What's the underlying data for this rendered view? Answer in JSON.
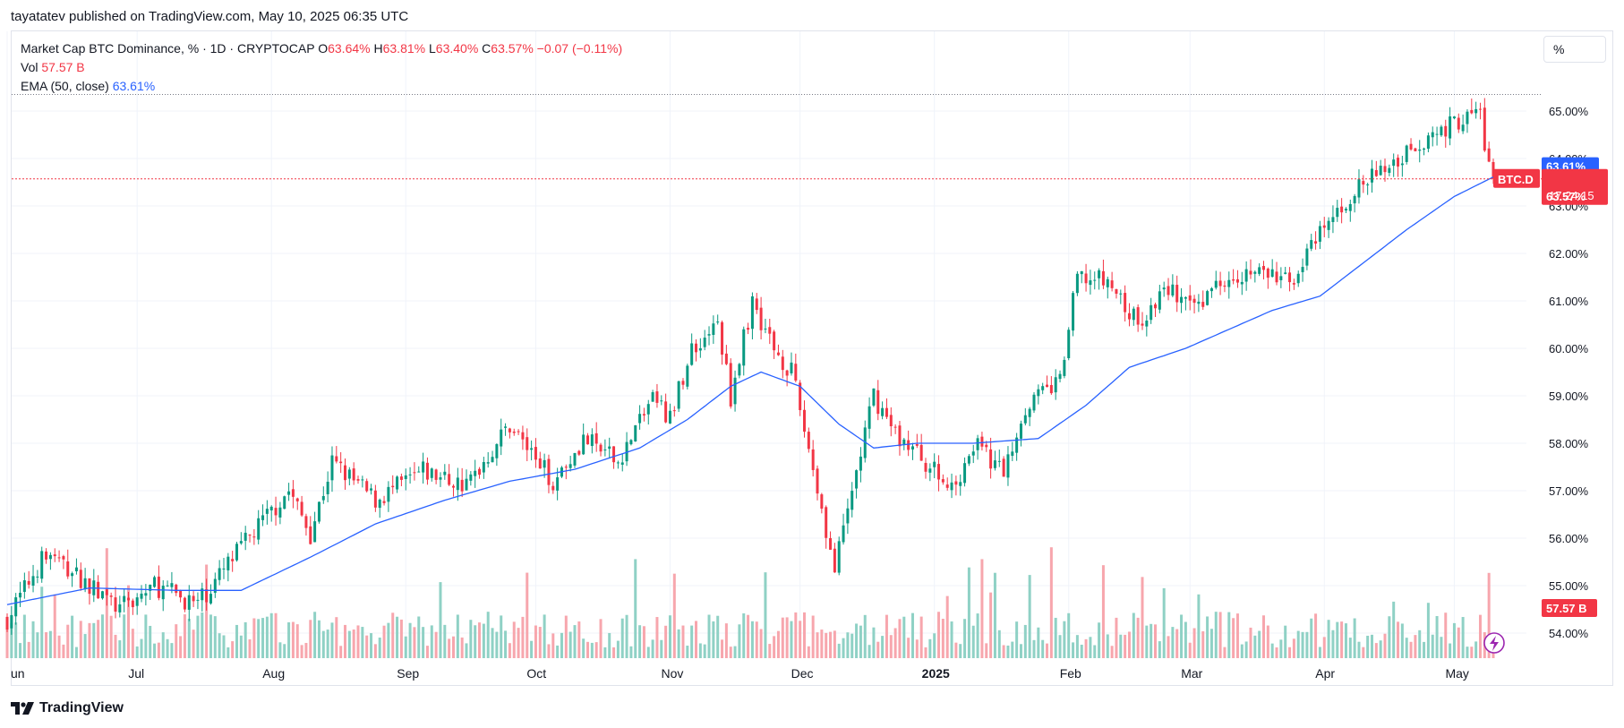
{
  "publisher": {
    "author": "tayatatev",
    "line": "tayatatev published on TradingView.com, May 10, 2025 06:35 UTC"
  },
  "legend": {
    "symbol": "Market Cap BTC Dominance, % · 1D · CRYPTOCAP",
    "open_label": "O",
    "open": "63.64%",
    "high_label": "H",
    "high": "63.81%",
    "low_label": "L",
    "low": "63.40%",
    "close_label": "C",
    "close": "63.57%",
    "change": "−0.07 (−0.11%)",
    "vol_label": "Vol",
    "vol": "57.57 B",
    "ema_label": "EMA (50, close)",
    "ema": "63.61%"
  },
  "scale_button": "%",
  "price_tags": {
    "ema": "63.61%",
    "symbol": "BTC.D",
    "last": "63.57%",
    "countdown": "17:24:15",
    "volume": "57.57 B"
  },
  "brand": "TradingView",
  "colors": {
    "up": "#089981",
    "down": "#f23645",
    "vol_up": "#8fd1c5",
    "vol_down": "#f7a6ad",
    "ema": "#2962ff",
    "grid": "#f0f3fa",
    "text": "#131722"
  },
  "chart_data": {
    "type": "candlestick",
    "symbol": "BTC.D",
    "interval": "1D",
    "y_unit": "%",
    "ylim": [
      53.5,
      66.2
    ],
    "y_ticks": [
      54,
      55,
      56,
      57,
      58,
      59,
      60,
      61,
      62,
      63,
      64,
      65
    ],
    "x_ticks": [
      {
        "label": "un",
        "date": "2024-06-01"
      },
      {
        "label": "Jul",
        "date": "2024-07-01"
      },
      {
        "label": "Aug",
        "date": "2024-08-01"
      },
      {
        "label": "Sep",
        "date": "2024-09-01"
      },
      {
        "label": "Oct",
        "date": "2024-10-01"
      },
      {
        "label": "Nov",
        "date": "2024-11-01"
      },
      {
        "label": "Dec",
        "date": "2024-12-01"
      },
      {
        "label": "2025",
        "date": "2025-01-01",
        "bold": true
      },
      {
        "label": "Feb",
        "date": "2025-02-01"
      },
      {
        "label": "Mar",
        "date": "2025-03-01"
      },
      {
        "label": "Apr",
        "date": "2025-04-01"
      },
      {
        "label": "May",
        "date": "2025-05-01"
      }
    ],
    "x_range": [
      "2024-06-01",
      "2025-05-10"
    ],
    "close_path": [
      [
        "2024-06-01",
        54.3
      ],
      [
        "2024-06-10",
        55.7
      ],
      [
        "2024-06-20",
        55.0
      ],
      [
        "2024-06-27",
        54.5
      ],
      [
        "2024-07-05",
        55.0
      ],
      [
        "2024-07-15",
        54.6
      ],
      [
        "2024-07-25",
        55.8
      ],
      [
        "2024-08-05",
        57.0
      ],
      [
        "2024-08-10",
        56.1
      ],
      [
        "2024-08-15",
        57.6
      ],
      [
        "2024-08-25",
        56.8
      ],
      [
        "2024-09-05",
        57.4
      ],
      [
        "2024-09-15",
        57.1
      ],
      [
        "2024-09-25",
        58.4
      ],
      [
        "2024-10-05",
        57.2
      ],
      [
        "2024-10-12",
        58.1
      ],
      [
        "2024-10-20",
        57.6
      ],
      [
        "2024-10-28",
        59.0
      ],
      [
        "2024-11-01",
        58.5
      ],
      [
        "2024-11-06",
        60.0
      ],
      [
        "2024-11-12",
        60.5
      ],
      [
        "2024-11-15",
        59.0
      ],
      [
        "2024-11-20",
        61.0
      ],
      [
        "2024-11-25",
        60.0
      ],
      [
        "2024-11-29",
        59.5
      ],
      [
        "2024-12-04",
        57.5
      ],
      [
        "2024-12-09",
        55.3
      ],
      [
        "2024-12-13",
        57.0
      ],
      [
        "2024-12-18",
        59.0
      ],
      [
        "2024-12-23",
        58.2
      ],
      [
        "2024-12-28",
        57.8
      ],
      [
        "2025-01-05",
        57.0
      ],
      [
        "2025-01-10",
        58.0
      ],
      [
        "2025-01-17",
        57.4
      ],
      [
        "2025-01-22",
        58.8
      ],
      [
        "2025-01-30",
        59.3
      ],
      [
        "2025-02-03",
        61.5
      ],
      [
        "2025-02-10",
        61.4
      ],
      [
        "2025-02-17",
        60.5
      ],
      [
        "2025-02-24",
        61.3
      ],
      [
        "2025-03-01",
        60.8
      ],
      [
        "2025-03-10",
        61.6
      ],
      [
        "2025-03-17",
        61.6
      ],
      [
        "2025-03-24",
        61.4
      ],
      [
        "2025-04-01",
        62.5
      ],
      [
        "2025-04-08",
        63.3
      ],
      [
        "2025-04-15",
        63.8
      ],
      [
        "2025-04-22",
        64.3
      ],
      [
        "2025-04-30",
        64.7
      ],
      [
        "2025-05-07",
        65.0
      ],
      [
        "2025-05-08",
        64.3
      ],
      [
        "2025-05-09",
        63.9
      ],
      [
        "2025-05-10",
        63.57
      ]
    ],
    "ema_path": [
      [
        "2024-06-01",
        54.6
      ],
      [
        "2024-06-20",
        54.95
      ],
      [
        "2024-07-10",
        54.9
      ],
      [
        "2024-07-25",
        54.9
      ],
      [
        "2024-08-10",
        55.6
      ],
      [
        "2024-08-25",
        56.3
      ],
      [
        "2024-09-10",
        56.8
      ],
      [
        "2024-09-25",
        57.2
      ],
      [
        "2024-10-10",
        57.45
      ],
      [
        "2024-10-25",
        57.9
      ],
      [
        "2024-11-05",
        58.5
      ],
      [
        "2024-11-15",
        59.2
      ],
      [
        "2024-11-22",
        59.5
      ],
      [
        "2024-12-01",
        59.2
      ],
      [
        "2024-12-10",
        58.4
      ],
      [
        "2024-12-18",
        57.9
      ],
      [
        "2024-12-28",
        58.0
      ],
      [
        "2025-01-10",
        58.0
      ],
      [
        "2025-01-25",
        58.1
      ],
      [
        "2025-02-05",
        58.8
      ],
      [
        "2025-02-15",
        59.6
      ],
      [
        "2025-02-28",
        60.0
      ],
      [
        "2025-03-10",
        60.4
      ],
      [
        "2025-03-20",
        60.8
      ],
      [
        "2025-03-31",
        61.1
      ],
      [
        "2025-04-10",
        61.8
      ],
      [
        "2025-04-20",
        62.5
      ],
      [
        "2025-05-01",
        63.2
      ],
      [
        "2025-05-10",
        63.61
      ]
    ],
    "last_close": 63.57,
    "ema_last": 63.61,
    "high_marker": 65.35,
    "volume_last": "57.57 B"
  }
}
